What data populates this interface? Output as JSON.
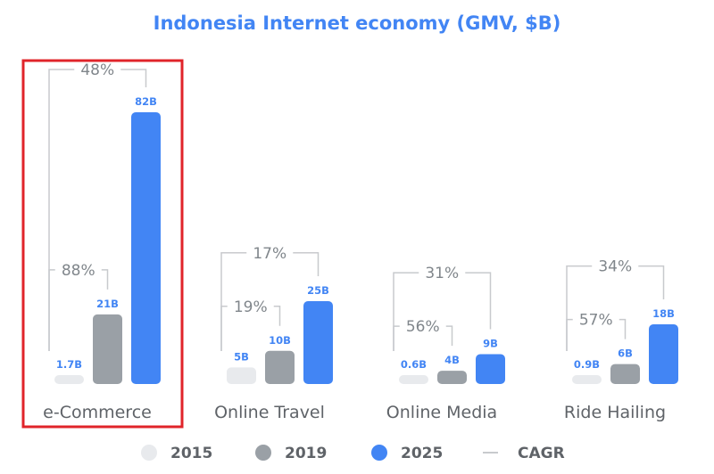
{
  "colors": {
    "y2015": "#e8eaed",
    "y2019": "#9aa0a6",
    "y2025": "#4285f4",
    "title": "#4285f4",
    "bracket": "#c8cacd",
    "cagr_text": "#80868b",
    "category_text": "#5f6368",
    "highlight": "#e0242a"
  },
  "chart_data": {
    "type": "bar",
    "title": "Indonesia Internet economy (GMV, $B)",
    "categories": [
      "e-Commerce",
      "Online Travel",
      "Online Media",
      "Ride Hailing"
    ],
    "series": [
      {
        "name": "2015",
        "values": [
          1.7,
          5,
          0.6,
          0.9
        ],
        "labels": [
          "1.7B",
          "5B",
          "0.6B",
          "0.9B"
        ]
      },
      {
        "name": "2019",
        "values": [
          21,
          10,
          4,
          6
        ],
        "labels": [
          "21B",
          "10B",
          "4B",
          "6B"
        ]
      },
      {
        "name": "2025",
        "values": [
          82,
          25,
          9,
          18
        ],
        "labels": [
          "82B",
          "25B",
          "9B",
          "18B"
        ]
      }
    ],
    "cagr": [
      {
        "inner": "88%",
        "outer": "48%"
      },
      {
        "inner": "19%",
        "outer": "17%"
      },
      {
        "inner": "56%",
        "outer": "31%"
      },
      {
        "inner": "57%",
        "outer": "34%"
      }
    ],
    "legend": {
      "items": [
        "2015",
        "2019",
        "2025"
      ],
      "cagr_label": "CAGR",
      "placement": "bottom"
    },
    "highlighted_category": "e-Commerce"
  }
}
